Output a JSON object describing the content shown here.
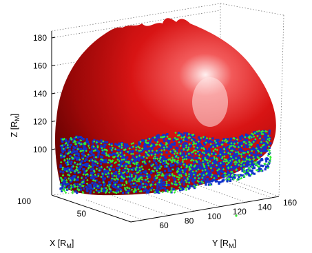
{
  "chart_data": {
    "type": "scatter",
    "title": "",
    "view": "3d",
    "grid": true,
    "axes": {
      "x": {
        "label": "X [R",
        "subscript": "M",
        "label_end": "]",
        "ticks": [
          "50",
          "100"
        ],
        "range": [
          20,
          110
        ]
      },
      "y": {
        "label": "Y [R",
        "subscript": "M",
        "label_end": "]",
        "ticks": [
          "60",
          "80",
          "100",
          "120",
          "140",
          "160"
        ],
        "range": [
          50,
          170
        ]
      },
      "z": {
        "label": "Z [R",
        "subscript": "M",
        "label_end": "]",
        "ticks": [
          "100",
          "120",
          "140",
          "160",
          "180"
        ],
        "range": [
          90,
          185
        ]
      }
    },
    "surface": {
      "color": "#d01010",
      "highlight": "#ffd6d6",
      "z_top": 185,
      "z_bottom": 95
    },
    "series": [
      {
        "marker": "blue",
        "color": "#1133cc",
        "z_range": [
          95,
          122
        ]
      },
      {
        "marker": "green",
        "color": "#33ee33",
        "z_range": [
          95,
          122
        ]
      }
    ]
  }
}
